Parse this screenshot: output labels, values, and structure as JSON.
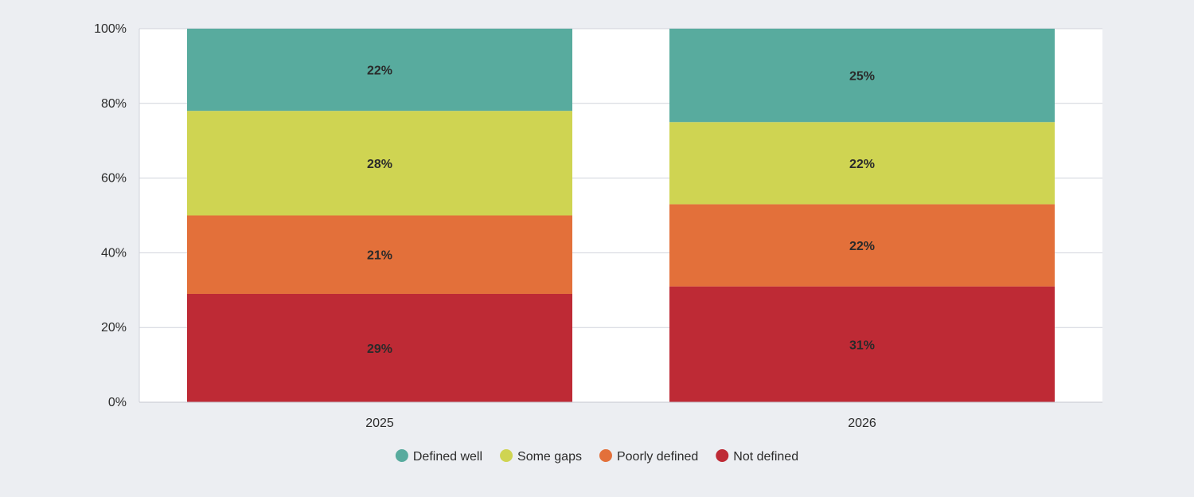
{
  "chart_data": {
    "type": "bar",
    "stacked": true,
    "categories": [
      "2025",
      "2026"
    ],
    "series": [
      {
        "name": "Not defined",
        "values": [
          29,
          31
        ],
        "labels": [
          "29%",
          "31%"
        ],
        "color": "#be2a35"
      },
      {
        "name": "Poorly defined",
        "values": [
          21,
          22
        ],
        "labels": [
          "21%",
          "22%"
        ],
        "color": "#e3703a"
      },
      {
        "name": "Some gaps",
        "values": [
          28,
          22
        ],
        "labels": [
          "28%",
          "22%"
        ],
        "color": "#cfd452"
      },
      {
        "name": "Defined well",
        "values": [
          22,
          25
        ],
        "labels": [
          "22%",
          "25%"
        ],
        "color": "#58ab9e"
      }
    ],
    "ylim": [
      0,
      100
    ],
    "yticks": [
      {
        "value": 0,
        "label": "0%"
      },
      {
        "value": 20,
        "label": "20%"
      },
      {
        "value": 40,
        "label": "40%"
      },
      {
        "value": 60,
        "label": "60%"
      },
      {
        "value": 80,
        "label": "80%"
      },
      {
        "value": 100,
        "label": "100%"
      }
    ],
    "legend": {
      "placement": "bottom",
      "order": [
        "Defined well",
        "Some gaps",
        "Poorly defined",
        "Not defined"
      ]
    },
    "grid": true,
    "colors": {
      "background": "#eceef2",
      "plot_background": "#ffffff",
      "gridline": "#d0d3db"
    }
  }
}
